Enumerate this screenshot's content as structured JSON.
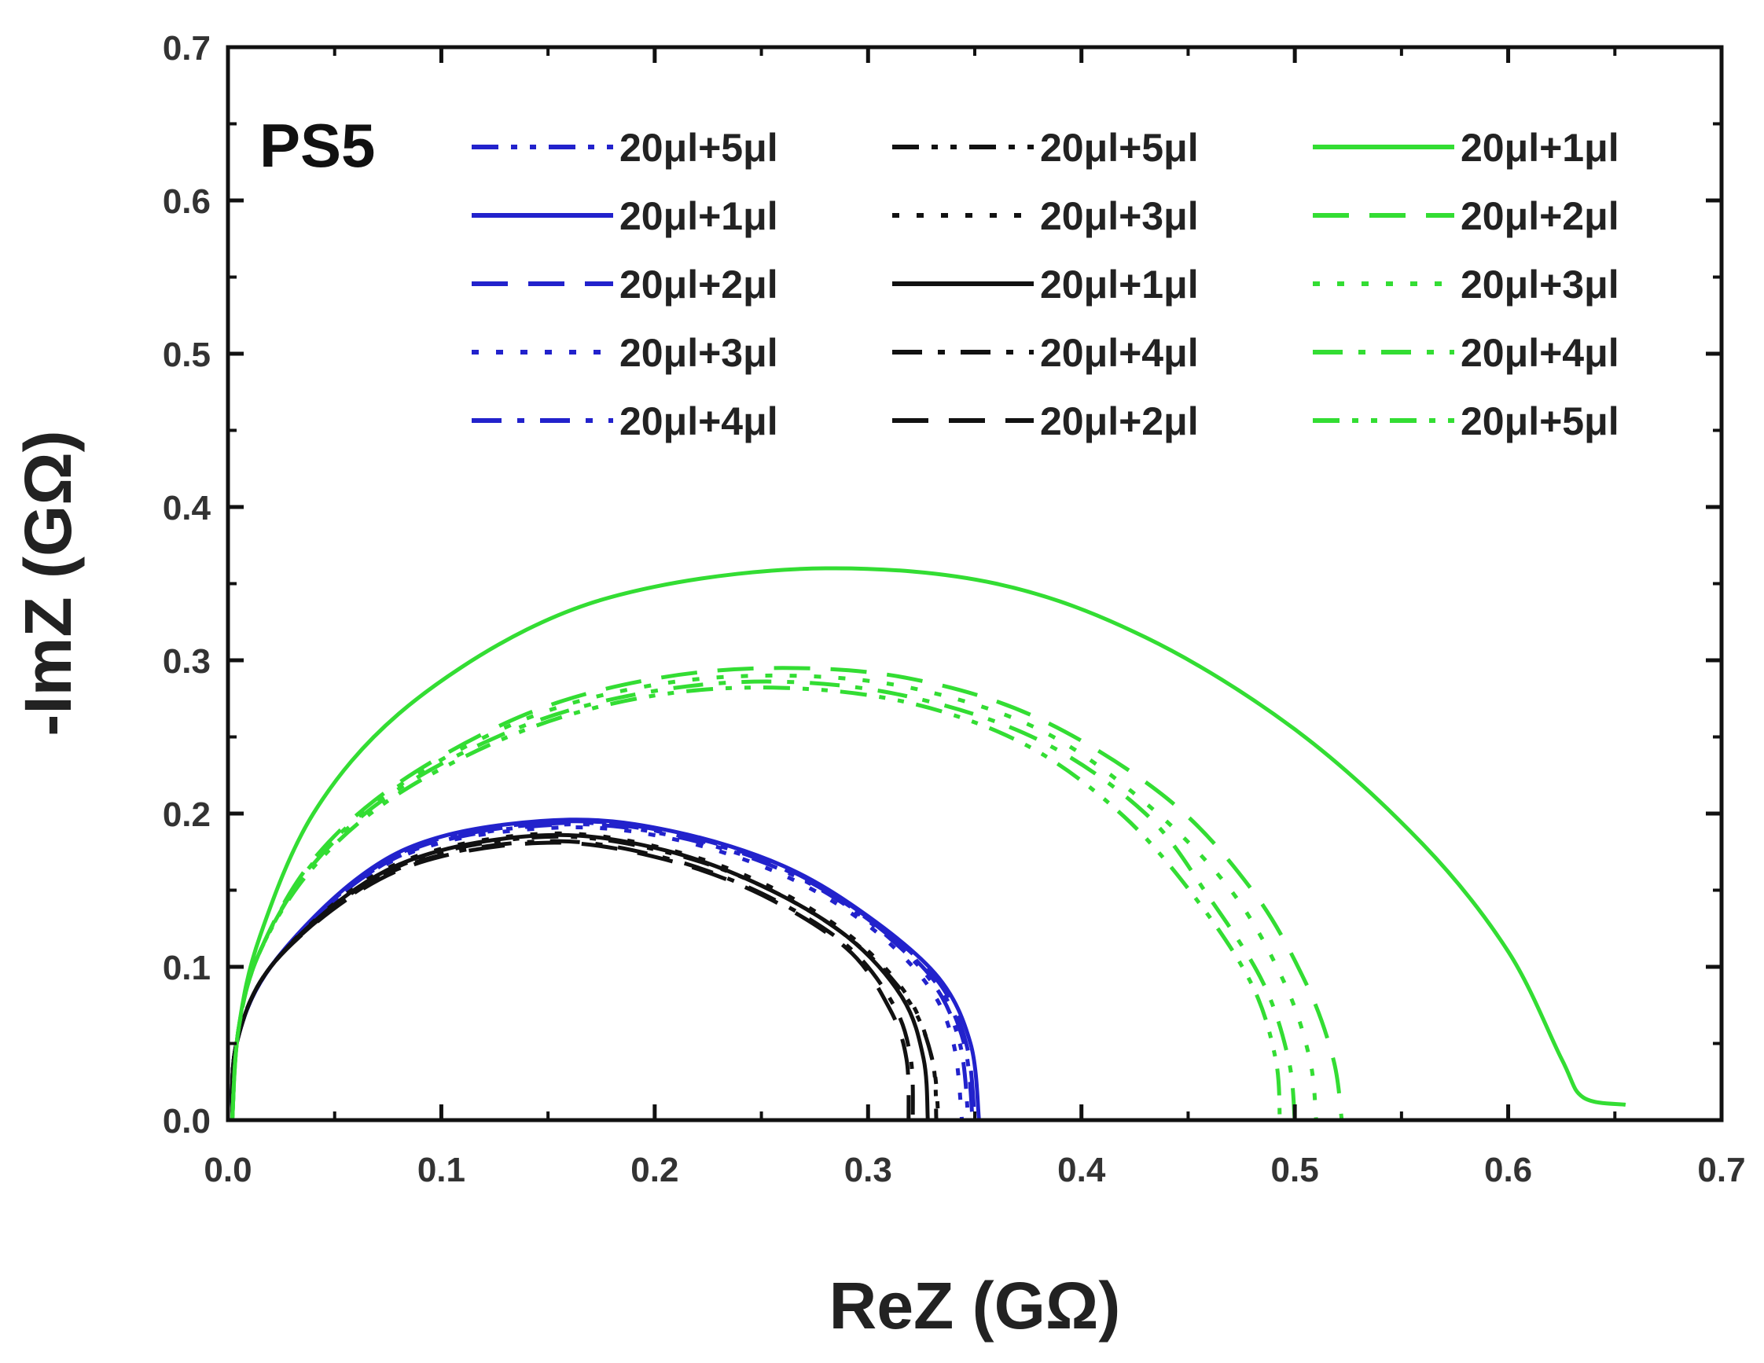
{
  "chart_data": {
    "type": "line",
    "title": "",
    "annotation": "PS5",
    "xlabel": "ReZ (GΩ)",
    "ylabel": "-ImZ (GΩ)",
    "xlim": [
      0.0,
      0.7
    ],
    "ylim": [
      0.0,
      0.7
    ],
    "xticks": [
      "0.0",
      "0.1",
      "0.2",
      "0.3",
      "0.4",
      "0.5",
      "0.6",
      "0.7"
    ],
    "yticks": [
      "0.0",
      "0.1",
      "0.2",
      "0.3",
      "0.4",
      "0.5",
      "0.6",
      "0.7"
    ],
    "grid": false,
    "legend_position": "top",
    "colors": {
      "blue": "#2222cc",
      "black": "#111111",
      "green": "#33dd33"
    },
    "series": [
      {
        "name": "20μl+5μl",
        "group": "blue",
        "dash": "dash-dot-dot",
        "points": [
          [
            0.002,
            0.0
          ],
          [
            0.004,
            0.05
          ],
          [
            0.02,
            0.1
          ],
          [
            0.06,
            0.155
          ],
          [
            0.1,
            0.182
          ],
          [
            0.16,
            0.193
          ],
          [
            0.21,
            0.185
          ],
          [
            0.26,
            0.163
          ],
          [
            0.3,
            0.13
          ],
          [
            0.33,
            0.09
          ],
          [
            0.343,
            0.05
          ],
          [
            0.347,
            0.0
          ]
        ]
      },
      {
        "name": "20μl+1μl",
        "group": "blue",
        "dash": "solid",
        "points": [
          [
            0.002,
            0.0
          ],
          [
            0.004,
            0.05
          ],
          [
            0.02,
            0.1
          ],
          [
            0.06,
            0.157
          ],
          [
            0.1,
            0.185
          ],
          [
            0.16,
            0.196
          ],
          [
            0.21,
            0.188
          ],
          [
            0.26,
            0.166
          ],
          [
            0.3,
            0.133
          ],
          [
            0.333,
            0.093
          ],
          [
            0.348,
            0.05
          ],
          [
            0.352,
            0.0
          ]
        ]
      },
      {
        "name": "20μl+2μl",
        "group": "blue",
        "dash": "dash",
        "points": [
          [
            0.002,
            0.0
          ],
          [
            0.004,
            0.05
          ],
          [
            0.02,
            0.1
          ],
          [
            0.06,
            0.156
          ],
          [
            0.1,
            0.184
          ],
          [
            0.16,
            0.195
          ],
          [
            0.21,
            0.187
          ],
          [
            0.26,
            0.165
          ],
          [
            0.3,
            0.132
          ],
          [
            0.332,
            0.092
          ],
          [
            0.346,
            0.05
          ],
          [
            0.35,
            0.0
          ]
        ]
      },
      {
        "name": "20μl+3μl",
        "group": "blue",
        "dash": "dot",
        "points": [
          [
            0.002,
            0.0
          ],
          [
            0.004,
            0.05
          ],
          [
            0.02,
            0.1
          ],
          [
            0.06,
            0.154
          ],
          [
            0.1,
            0.181
          ],
          [
            0.16,
            0.191
          ],
          [
            0.21,
            0.183
          ],
          [
            0.26,
            0.16
          ],
          [
            0.3,
            0.127
          ],
          [
            0.328,
            0.088
          ],
          [
            0.34,
            0.05
          ],
          [
            0.344,
            0.0
          ]
        ]
      },
      {
        "name": "20μl+4μl",
        "group": "blue",
        "dash": "dash-dot",
        "points": [
          [
            0.002,
            0.0
          ],
          [
            0.004,
            0.05
          ],
          [
            0.02,
            0.1
          ],
          [
            0.06,
            0.155
          ],
          [
            0.1,
            0.183
          ],
          [
            0.16,
            0.194
          ],
          [
            0.21,
            0.186
          ],
          [
            0.26,
            0.164
          ],
          [
            0.3,
            0.131
          ],
          [
            0.331,
            0.091
          ],
          [
            0.345,
            0.05
          ],
          [
            0.349,
            0.0
          ]
        ]
      },
      {
        "name": "20μl+5μl",
        "group": "black",
        "dash": "dash-dot-dot",
        "points": [
          [
            0.002,
            0.0
          ],
          [
            0.004,
            0.05
          ],
          [
            0.02,
            0.1
          ],
          [
            0.06,
            0.15
          ],
          [
            0.1,
            0.175
          ],
          [
            0.155,
            0.185
          ],
          [
            0.205,
            0.175
          ],
          [
            0.25,
            0.153
          ],
          [
            0.29,
            0.12
          ],
          [
            0.318,
            0.08
          ],
          [
            0.33,
            0.04
          ],
          [
            0.332,
            0.0
          ]
        ]
      },
      {
        "name": "20μl+3μl",
        "group": "black",
        "dash": "dot",
        "points": [
          [
            0.002,
            0.0
          ],
          [
            0.004,
            0.05
          ],
          [
            0.02,
            0.1
          ],
          [
            0.06,
            0.152
          ],
          [
            0.1,
            0.177
          ],
          [
            0.155,
            0.187
          ],
          [
            0.205,
            0.177
          ],
          [
            0.25,
            0.155
          ],
          [
            0.29,
            0.122
          ],
          [
            0.318,
            0.082
          ],
          [
            0.33,
            0.04
          ],
          [
            0.333,
            0.0
          ]
        ]
      },
      {
        "name": "20μl+1μl",
        "group": "black",
        "dash": "solid",
        "points": [
          [
            0.002,
            0.0
          ],
          [
            0.004,
            0.05
          ],
          [
            0.02,
            0.1
          ],
          [
            0.06,
            0.151
          ],
          [
            0.1,
            0.176
          ],
          [
            0.155,
            0.186
          ],
          [
            0.205,
            0.176
          ],
          [
            0.25,
            0.153
          ],
          [
            0.29,
            0.12
          ],
          [
            0.316,
            0.08
          ],
          [
            0.326,
            0.04
          ],
          [
            0.328,
            0.0
          ]
        ]
      },
      {
        "name": "20μl+4μl",
        "group": "black",
        "dash": "dash-dot",
        "points": [
          [
            0.002,
            0.0
          ],
          [
            0.004,
            0.05
          ],
          [
            0.02,
            0.1
          ],
          [
            0.06,
            0.149
          ],
          [
            0.1,
            0.173
          ],
          [
            0.155,
            0.182
          ],
          [
            0.205,
            0.171
          ],
          [
            0.25,
            0.148
          ],
          [
            0.29,
            0.114
          ],
          [
            0.312,
            0.075
          ],
          [
            0.32,
            0.04
          ],
          [
            0.321,
            0.0
          ]
        ]
      },
      {
        "name": "20μl+2μl",
        "group": "black",
        "dash": "dash",
        "points": [
          [
            0.002,
            0.0
          ],
          [
            0.004,
            0.05
          ],
          [
            0.02,
            0.1
          ],
          [
            0.06,
            0.148
          ],
          [
            0.1,
            0.172
          ],
          [
            0.155,
            0.181
          ],
          [
            0.205,
            0.17
          ],
          [
            0.25,
            0.147
          ],
          [
            0.29,
            0.112
          ],
          [
            0.31,
            0.073
          ],
          [
            0.318,
            0.04
          ],
          [
            0.319,
            0.0
          ]
        ]
      },
      {
        "name": "20μl+1μl",
        "group": "green",
        "dash": "solid",
        "points": [
          [
            0.002,
            0.0
          ],
          [
            0.005,
            0.06
          ],
          [
            0.015,
            0.12
          ],
          [
            0.04,
            0.2
          ],
          [
            0.08,
            0.265
          ],
          [
            0.14,
            0.32
          ],
          [
            0.2,
            0.348
          ],
          [
            0.28,
            0.36
          ],
          [
            0.36,
            0.35
          ],
          [
            0.43,
            0.315
          ],
          [
            0.5,
            0.255
          ],
          [
            0.56,
            0.18
          ],
          [
            0.6,
            0.11
          ],
          [
            0.625,
            0.04
          ],
          [
            0.635,
            0.015
          ],
          [
            0.655,
            0.01
          ]
        ]
      },
      {
        "name": "20μl+2μl",
        "group": "green",
        "dash": "dash",
        "points": [
          [
            0.002,
            0.0
          ],
          [
            0.005,
            0.06
          ],
          [
            0.015,
            0.11
          ],
          [
            0.04,
            0.17
          ],
          [
            0.08,
            0.22
          ],
          [
            0.14,
            0.265
          ],
          [
            0.2,
            0.288
          ],
          [
            0.26,
            0.295
          ],
          [
            0.32,
            0.288
          ],
          [
            0.38,
            0.262
          ],
          [
            0.44,
            0.21
          ],
          [
            0.48,
            0.15
          ],
          [
            0.505,
            0.09
          ],
          [
            0.518,
            0.04
          ],
          [
            0.522,
            0.0
          ]
        ]
      },
      {
        "name": "20μl+3μl",
        "group": "green",
        "dash": "dot",
        "points": [
          [
            0.002,
            0.0
          ],
          [
            0.005,
            0.06
          ],
          [
            0.015,
            0.11
          ],
          [
            0.04,
            0.168
          ],
          [
            0.08,
            0.218
          ],
          [
            0.14,
            0.262
          ],
          [
            0.2,
            0.284
          ],
          [
            0.26,
            0.29
          ],
          [
            0.32,
            0.282
          ],
          [
            0.38,
            0.255
          ],
          [
            0.43,
            0.207
          ],
          [
            0.47,
            0.15
          ],
          [
            0.495,
            0.09
          ],
          [
            0.507,
            0.04
          ],
          [
            0.51,
            0.0
          ]
        ]
      },
      {
        "name": "20μl+4μl",
        "group": "green",
        "dash": "dash-dot",
        "points": [
          [
            0.002,
            0.0
          ],
          [
            0.005,
            0.06
          ],
          [
            0.015,
            0.11
          ],
          [
            0.04,
            0.167
          ],
          [
            0.08,
            0.216
          ],
          [
            0.14,
            0.258
          ],
          [
            0.2,
            0.28
          ],
          [
            0.26,
            0.286
          ],
          [
            0.32,
            0.276
          ],
          [
            0.38,
            0.248
          ],
          [
            0.43,
            0.2
          ],
          [
            0.46,
            0.145
          ],
          [
            0.485,
            0.09
          ],
          [
            0.497,
            0.04
          ],
          [
            0.5,
            0.0
          ]
        ]
      },
      {
        "name": "20μl+5μl",
        "group": "green",
        "dash": "dash-dot-dot",
        "points": [
          [
            0.002,
            0.0
          ],
          [
            0.005,
            0.06
          ],
          [
            0.015,
            0.11
          ],
          [
            0.04,
            0.165
          ],
          [
            0.08,
            0.213
          ],
          [
            0.14,
            0.255
          ],
          [
            0.2,
            0.277
          ],
          [
            0.26,
            0.282
          ],
          [
            0.32,
            0.272
          ],
          [
            0.375,
            0.244
          ],
          [
            0.42,
            0.198
          ],
          [
            0.455,
            0.142
          ],
          [
            0.48,
            0.088
          ],
          [
            0.491,
            0.04
          ],
          [
            0.493,
            0.0
          ]
        ]
      }
    ],
    "legend_columns": [
      [
        0,
        1,
        2,
        3,
        4
      ],
      [
        5,
        6,
        7,
        8,
        9
      ],
      [
        10,
        11,
        12,
        13,
        14
      ]
    ]
  }
}
